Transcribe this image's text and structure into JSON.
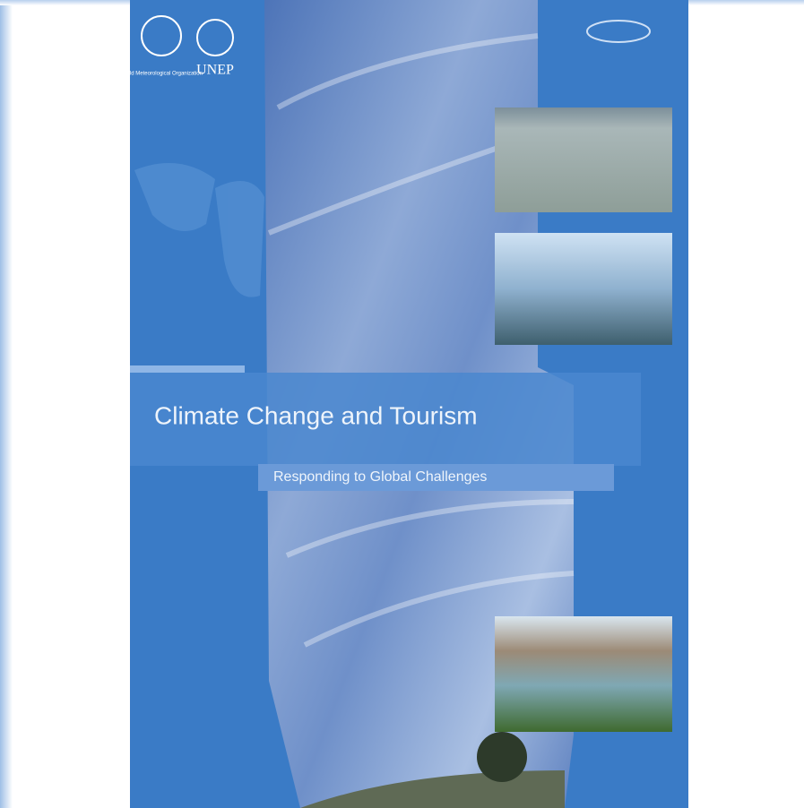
{
  "logos": {
    "wmo": "World Meteorological Organization",
    "unep": "UNEP"
  },
  "title": "Climate Change and Tourism",
  "subtitle": "Responding to Global Challenges"
}
